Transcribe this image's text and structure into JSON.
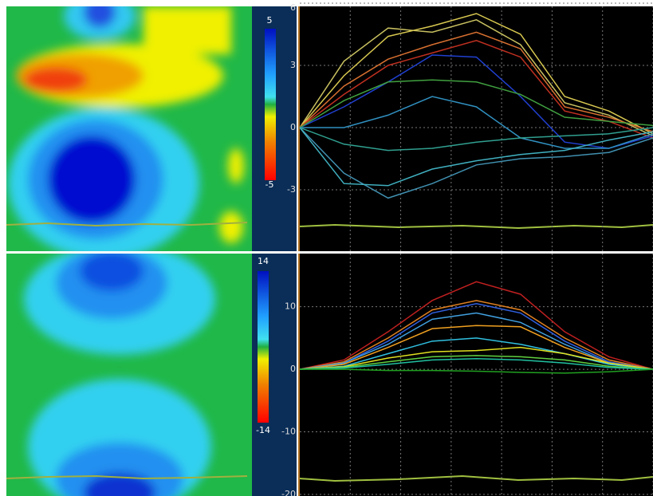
{
  "panels": [
    {
      "colorbar": {
        "max": 5,
        "min": -5
      },
      "chart_data": {
        "type": "line",
        "x": [
          0,
          1,
          2,
          3,
          4,
          5,
          6,
          7,
          8
        ],
        "xlim": [
          0,
          8
        ],
        "ylim": [
          -6,
          6
        ],
        "yticks": [
          -3,
          0,
          3,
          6
        ],
        "grid": true,
        "series": [
          {
            "color": "#c8c060",
            "values": [
              0,
              3.2,
              4.8,
              4.6,
              5.2,
              4.0,
              1.2,
              0.6,
              -0.4
            ]
          },
          {
            "color": "#d8c850",
            "values": [
              0,
              2.5,
              4.4,
              4.9,
              5.5,
              4.5,
              1.5,
              0.8,
              -0.3
            ]
          },
          {
            "color": "#d87030",
            "values": [
              0,
              2.0,
              3.3,
              4.0,
              4.6,
              3.8,
              1.0,
              0.5,
              -0.2
            ]
          },
          {
            "color": "#c03020",
            "values": [
              0,
              1.6,
              3.0,
              3.6,
              4.2,
              3.4,
              0.8,
              0.3,
              -0.5
            ]
          },
          {
            "color": "#2040d0",
            "values": [
              0,
              1.0,
              2.2,
              3.5,
              3.4,
              1.5,
              -0.7,
              -1.0,
              -0.4
            ]
          },
          {
            "color": "#40a040",
            "values": [
              0,
              1.3,
              2.2,
              2.3,
              2.2,
              1.6,
              0.5,
              0.3,
              0.1
            ]
          },
          {
            "color": "#3090c0",
            "values": [
              0,
              0.0,
              0.6,
              1.5,
              1.0,
              -0.5,
              -1.0,
              -1.0,
              -0.3
            ]
          },
          {
            "color": "#30a090",
            "values": [
              0,
              -0.8,
              -1.1,
              -1.0,
              -0.7,
              -0.5,
              -0.4,
              -0.3,
              0
            ]
          },
          {
            "color": "#4090b0",
            "values": [
              0,
              -2.2,
              -3.4,
              -2.7,
              -1.8,
              -1.5,
              -1.4,
              -1.2,
              -0.5
            ]
          },
          {
            "color": "#40b0c0",
            "values": [
              0,
              -2.7,
              -2.8,
              -2.0,
              -1.6,
              -1.3,
              -1.1,
              -0.6,
              -0.2
            ]
          }
        ]
      }
    },
    {
      "colorbar": {
        "max": 14,
        "min": -14
      },
      "chart_data": {
        "type": "line",
        "x": [
          0,
          1,
          2,
          3,
          4,
          5,
          6,
          7,
          8
        ],
        "xlim": [
          0,
          8
        ],
        "ylim": [
          -20,
          18.5
        ],
        "yticks": [
          -20,
          -10,
          0,
          10
        ],
        "grid": true,
        "series": [
          {
            "color": "#c02020",
            "values": [
              0,
              1.5,
              6,
              11,
              14,
              12,
              6,
              2,
              0
            ]
          },
          {
            "color": "#e08020",
            "values": [
              0,
              1.2,
              5,
              9.5,
              11,
              9.5,
              5,
              1.5,
              0
            ]
          },
          {
            "color": "#3060e0",
            "values": [
              0,
              1,
              4.5,
              9,
              10.5,
              9,
              4.5,
              1.2,
              0
            ]
          },
          {
            "color": "#40a0e0",
            "values": [
              0,
              1,
              4,
              8,
              9,
              7.5,
              4,
              1,
              0
            ]
          },
          {
            "color": "#f0a020",
            "values": [
              0,
              0.8,
              3.5,
              6.5,
              7,
              6.8,
              3.5,
              1,
              0
            ]
          },
          {
            "color": "#30c0e0",
            "values": [
              0,
              0.5,
              2.5,
              4.5,
              5,
              4,
              2.5,
              0.8,
              0
            ]
          },
          {
            "color": "#e0e020",
            "values": [
              0,
              0.4,
              1.8,
              2.8,
              3,
              3.5,
              2.5,
              1,
              0
            ]
          },
          {
            "color": "#60d040",
            "values": [
              0,
              0.3,
              1.2,
              2,
              2.2,
              2,
              1.5,
              0.5,
              0
            ]
          },
          {
            "color": "#20c0a0",
            "values": [
              0,
              0.2,
              0.8,
              1.5,
              1.7,
              1.5,
              1,
              0.3,
              0
            ]
          },
          {
            "color": "#20a020",
            "values": [
              0,
              0,
              -0.2,
              -0.2,
              -0.3,
              -0.5,
              -0.6,
              -0.4,
              0
            ]
          }
        ]
      }
    }
  ]
}
